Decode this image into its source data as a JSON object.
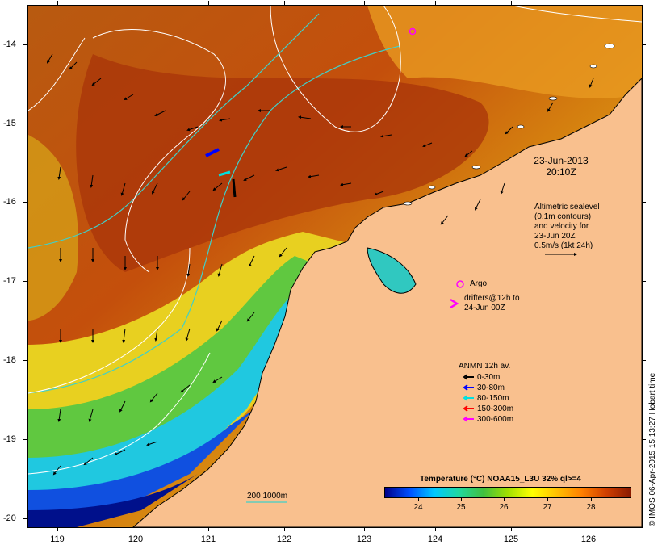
{
  "map": {
    "date_line1": "23-Jun-2013",
    "date_line2": "20:10Z",
    "altimetry_lines": [
      "Altimetric sealevel",
      "(0.1m contours)",
      "and velocity for",
      "23-Jun 20Z",
      "0.5m/s (1kt 24h)"
    ],
    "argo_label": "Argo",
    "drifters_lines": [
      "drifters@12h to",
      "24-Jun 00Z"
    ],
    "isobath_label": "200  1000m",
    "credit": "© IMOS 06-Apr-2015 15:13:27 Hobart time",
    "colors": {
      "land": "#f9c08e",
      "isobath": "#40d0c8",
      "argo": "#ff00ff"
    }
  },
  "axes": {
    "x_ticks": [
      "119",
      "120",
      "121",
      "122",
      "123",
      "124",
      "125",
      "126"
    ],
    "y_ticks": [
      "-14",
      "-15",
      "-16",
      "-17",
      "-18",
      "-19",
      "-20"
    ]
  },
  "legend": {
    "title": "ANMN 12h av.",
    "items": [
      {
        "label": "0-30m",
        "color": "#000000"
      },
      {
        "label": "30-80m",
        "color": "#0000ff"
      },
      {
        "label": "80-150m",
        "color": "#00e0e0"
      },
      {
        "label": "150-300m",
        "color": "#ff0000"
      },
      {
        "label": "300-600m",
        "color": "#ff00ff"
      }
    ]
  },
  "colorbar": {
    "title": "Temperature (°C) NOAA15_L3U 32% ql>=4",
    "ticks": [
      "24",
      "25",
      "26",
      "27",
      "28"
    ],
    "colors": [
      "#00008b",
      "#0050ff",
      "#00c8ff",
      "#20d8a0",
      "#40c040",
      "#a0e000",
      "#ffff00",
      "#ffc000",
      "#ff8000",
      "#d04000",
      "#8b1a00"
    ]
  }
}
